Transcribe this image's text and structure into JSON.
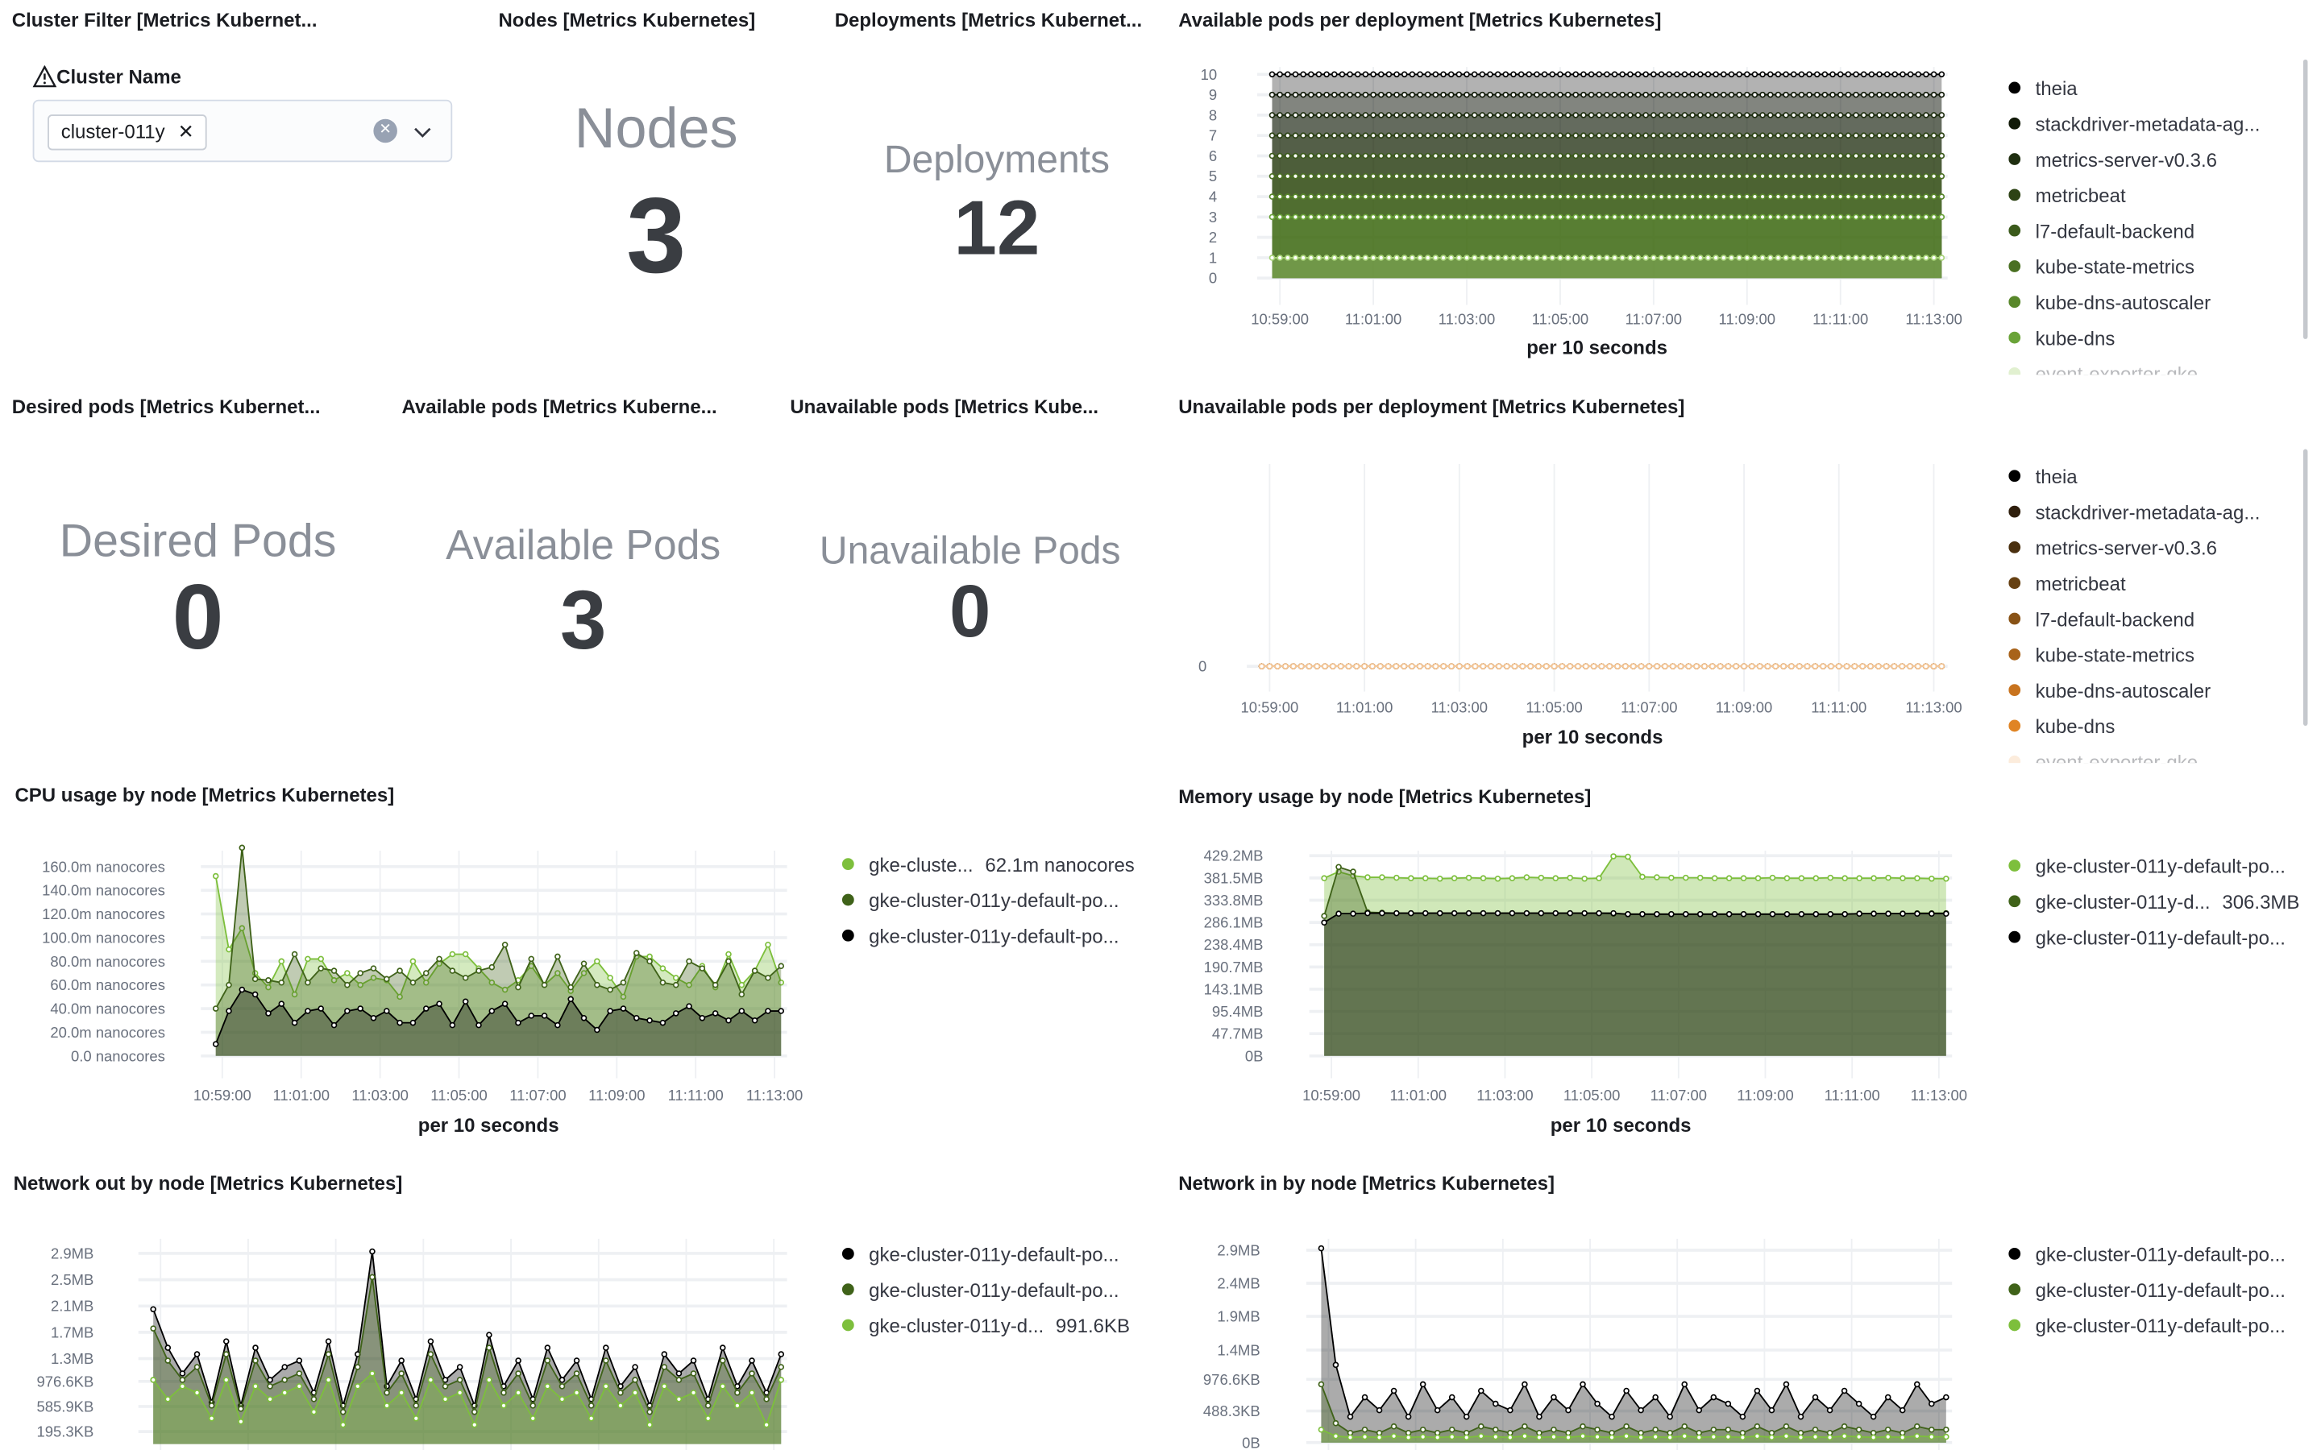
{
  "panels": {
    "cluster_filter": {
      "title": "Cluster Filter [Metrics Kubernet...",
      "label": "Cluster Name",
      "selected": "cluster-011y",
      "icons": [
        "warning-icon",
        "clear-icon",
        "chevron-down-icon",
        "remove-chip-icon"
      ]
    },
    "nodes": {
      "title": "Nodes [Metrics Kubernetes]",
      "label": "Nodes",
      "value": "3"
    },
    "deployments": {
      "title": "Deployments [Metrics Kubernet...",
      "label": "Deployments",
      "value": "12"
    },
    "desired": {
      "title": "Desired pods [Metrics Kubernet...",
      "label": "Desired Pods",
      "value": "0"
    },
    "available": {
      "title": "Available pods [Metrics Kuberne...",
      "label": "Available Pods",
      "value": "3"
    },
    "unavailable": {
      "title": "Unavailable pods [Metrics Kube...",
      "label": "Unavailable Pods",
      "value": "0"
    }
  },
  "chart_data": [
    {
      "id": "avail_per_deploy",
      "type": "area",
      "title": "Available pods per deployment [Metrics Kubernetes]",
      "xlabel": "per 10 seconds",
      "x_start": "10:58:50",
      "x_end": "11:13:10",
      "x_ticks": [
        "10:59:00",
        "11:01:00",
        "11:03:00",
        "11:05:00",
        "11:07:00",
        "11:09:00",
        "11:11:00",
        "11:13:00"
      ],
      "y_ticks": [
        {
          "v": 0,
          "l": "0"
        },
        {
          "v": 1,
          "l": "1"
        },
        {
          "v": 2,
          "l": "2"
        },
        {
          "v": 3,
          "l": "3"
        },
        {
          "v": 4,
          "l": "4"
        },
        {
          "v": 5,
          "l": "5"
        },
        {
          "v": 6,
          "l": "6"
        },
        {
          "v": 7,
          "l": "7"
        },
        {
          "v": 8,
          "l": "8"
        },
        {
          "v": 9,
          "l": "9"
        },
        {
          "v": 10,
          "l": "10"
        }
      ],
      "ylim": [
        0,
        10
      ],
      "series": [
        {
          "name": "theia",
          "color": "#000000",
          "constant": 10
        },
        {
          "name": "stackdriver-metadata-ag...",
          "color": "#111a08",
          "constant": 9
        },
        {
          "name": "metrics-server-v0.3.6",
          "color": "#1f2e10",
          "constant": 8
        },
        {
          "name": "metricbeat",
          "color": "#2d4315",
          "constant": 7
        },
        {
          "name": "l7-default-backend",
          "color": "#3b5a1b",
          "constant": 6
        },
        {
          "name": "kube-state-metrics",
          "color": "#4a7022",
          "constant": 5
        },
        {
          "name": "kube-dns-autoscaler",
          "color": "#58872a",
          "constant": 4
        },
        {
          "name": "kube-dns",
          "color": "#6aa338",
          "constant": 3
        },
        {
          "name": "event-exporter-gke",
          "color": "#a9d47a",
          "constant": 1
        }
      ]
    },
    {
      "id": "unavail_per_deploy",
      "type": "area",
      "title": "Unavailable pods per deployment [Metrics Kubernetes]",
      "xlabel": "per 10 seconds",
      "x_start": "10:58:50",
      "x_end": "11:13:10",
      "x_ticks": [
        "10:59:00",
        "11:01:00",
        "11:03:00",
        "11:05:00",
        "11:07:00",
        "11:09:00",
        "11:11:00",
        "11:13:00"
      ],
      "y_ticks": [
        {
          "v": 0,
          "l": "0"
        }
      ],
      "ylim": [
        0,
        1
      ],
      "series": [
        {
          "name": "theia",
          "color": "#000000",
          "constant": 0
        },
        {
          "name": "stackdriver-metadata-ag...",
          "color": "#2e1e0c",
          "constant": 0
        },
        {
          "name": "metrics-server-v0.3.6",
          "color": "#4a300f",
          "constant": 0
        },
        {
          "name": "metricbeat",
          "color": "#664012",
          "constant": 0
        },
        {
          "name": "l7-default-backend",
          "color": "#885216",
          "constant": 0
        },
        {
          "name": "kube-state-metrics",
          "color": "#a8631a",
          "constant": 0
        },
        {
          "name": "kube-dns-autoscaler",
          "color": "#c8731e",
          "constant": 0
        },
        {
          "name": "kube-dns",
          "color": "#e08424",
          "constant": 0
        },
        {
          "name": "event-exporter-gke",
          "color": "#f5c89a",
          "constant": 0
        }
      ]
    },
    {
      "id": "cpu",
      "type": "area",
      "title": "CPU usage by node [Metrics Kubernetes]",
      "xlabel": "per 10 seconds",
      "x_start": "10:58:50",
      "x_end": "11:13:10",
      "x_ticks": [
        "10:59:00",
        "11:01:00",
        "11:03:00",
        "11:05:00",
        "11:07:00",
        "11:09:00",
        "11:11:00",
        "11:13:00"
      ],
      "y_ticks": [
        {
          "v": 0,
          "l": "0.0 nanocores"
        },
        {
          "v": 20,
          "l": "20.0m nanocores"
        },
        {
          "v": 40,
          "l": "40.0m nanocores"
        },
        {
          "v": 60,
          "l": "60.0m nanocores"
        },
        {
          "v": 80,
          "l": "80.0m nanocores"
        },
        {
          "v": 100,
          "l": "100.0m nanocores"
        },
        {
          "v": 120,
          "l": "120.0m nanocores"
        },
        {
          "v": 140,
          "l": "140.0m nanocores"
        },
        {
          "v": 160,
          "l": "160.0m nanocores"
        }
      ],
      "ylim": [
        0,
        176
      ],
      "series": [
        {
          "name": "gke-cluste...",
          "value_label": "62.1m nanocores",
          "color": "#7dbf3c",
          "values": [
            152,
            90,
            108,
            70,
            58,
            80,
            52,
            82,
            82,
            64,
            70,
            60,
            66,
            64,
            50,
            80,
            62,
            78,
            86,
            86,
            74,
            62,
            56,
            64,
            76,
            60,
            70,
            55,
            70,
            80,
            66,
            50,
            84,
            84,
            74,
            66,
            60,
            76,
            58,
            86,
            60,
            72,
            94,
            62
          ]
        },
        {
          "name": "gke-cluster-011y-default-po...",
          "color": "#3f6219",
          "values": [
            40,
            60,
            176,
            65,
            64,
            62,
            86,
            62,
            74,
            72,
            60,
            70,
            74,
            65,
            72,
            62,
            70,
            82,
            72,
            66,
            72,
            75,
            94,
            58,
            82,
            60,
            84,
            58,
            78,
            60,
            56,
            62,
            87,
            80,
            62,
            60,
            80,
            74,
            60,
            80,
            52,
            72,
            66,
            76
          ]
        },
        {
          "name": "gke-cluster-011y-default-po...",
          "color": "#000000",
          "values": [
            10,
            38,
            56,
            52,
            36,
            44,
            28,
            38,
            40,
            26,
            38,
            40,
            32,
            38,
            28,
            28,
            40,
            44,
            26,
            46,
            26,
            38,
            44,
            28,
            34,
            34,
            26,
            48,
            32,
            22,
            38,
            40,
            32,
            30,
            28,
            36,
            42,
            32,
            36,
            30,
            38,
            30,
            38,
            38
          ]
        }
      ]
    },
    {
      "id": "memory",
      "type": "area",
      "title": "Memory usage by node [Metrics Kubernetes]",
      "xlabel": "per 10 seconds",
      "x_start": "10:58:50",
      "x_end": "11:13:10",
      "x_ticks": [
        "10:59:00",
        "11:01:00",
        "11:03:00",
        "11:05:00",
        "11:07:00",
        "11:09:00",
        "11:11:00",
        "11:13:00"
      ],
      "y_ticks": [
        {
          "v": 0,
          "l": "0B"
        },
        {
          "v": 47.7,
          "l": "47.7MB"
        },
        {
          "v": 95.4,
          "l": "95.4MB"
        },
        {
          "v": 143.1,
          "l": "143.1MB"
        },
        {
          "v": 190.7,
          "l": "190.7MB"
        },
        {
          "v": 238.4,
          "l": "238.4MB"
        },
        {
          "v": 286.1,
          "l": "286.1MB"
        },
        {
          "v": 333.8,
          "l": "333.8MB"
        },
        {
          "v": 381.5,
          "l": "381.5MB"
        },
        {
          "v": 429.2,
          "l": "429.2MB"
        }
      ],
      "ylim": [
        0,
        440
      ],
      "series": [
        {
          "name": "gke-cluster-011y-default-po...",
          "color": "#7dbf3c",
          "values": [
            381,
            395,
            386,
            383,
            383,
            382,
            381,
            381,
            380,
            381,
            382,
            381,
            380,
            381,
            383,
            382,
            381,
            382,
            380,
            381,
            428,
            427,
            384,
            383,
            382,
            382,
            382,
            381,
            381,
            381,
            381,
            382,
            381,
            381,
            381,
            382,
            381,
            381,
            381,
            382,
            381,
            381,
            380,
            380
          ]
        },
        {
          "name": "gke-cluster-011y-d...",
          "value_label": "306.3MB",
          "color": "#3f6219",
          "values": [
            300,
            405,
            395,
            308,
            307,
            306,
            306,
            306,
            306,
            306,
            306,
            306,
            306,
            306,
            306,
            306,
            306,
            306,
            306,
            306,
            305,
            304,
            304,
            304,
            304,
            304,
            304,
            304,
            304,
            304,
            304,
            304,
            304,
            304,
            304,
            304,
            304,
            305,
            305,
            305,
            305,
            306,
            306,
            306
          ]
        },
        {
          "name": "gke-cluster-011y-default-po...",
          "color": "#000000",
          "values": [
            286,
            305,
            305,
            306,
            306,
            306,
            306,
            306,
            306,
            306,
            306,
            306,
            306,
            306,
            306,
            306,
            306,
            306,
            306,
            306,
            306,
            304,
            304,
            304,
            304,
            304,
            304,
            304,
            304,
            304,
            304,
            304,
            304,
            304,
            304,
            304,
            304,
            305,
            305,
            305,
            305,
            305,
            305,
            305
          ]
        }
      ]
    },
    {
      "id": "net_out",
      "type": "area",
      "title": "Network out by node [Metrics Kubernetes]",
      "xlabel": "",
      "x_start": "10:58:50",
      "x_end": "11:13:10",
      "x_ticks": [],
      "y_ticks": [
        {
          "v": 195.3,
          "l": "195.3KB"
        },
        {
          "v": 585.9,
          "l": "585.9KB"
        },
        {
          "v": 976.6,
          "l": "976.6KB"
        },
        {
          "v": 1331,
          "l": "1.3MB"
        },
        {
          "v": 1741,
          "l": "1.7MB"
        },
        {
          "v": 2150,
          "l": "2.1MB"
        },
        {
          "v": 2560,
          "l": "2.5MB"
        },
        {
          "v": 2970,
          "l": "2.9MB"
        }
      ],
      "ylim": [
        0,
        3150
      ],
      "series": [
        {
          "name": "gke-cluster-011y-default-po...",
          "color": "#000000",
          "values": [
            2100,
            1500,
            1100,
            1400,
            650,
            1600,
            600,
            1500,
            1000,
            1200,
            1300,
            800,
            1600,
            600,
            1400,
            3000,
            900,
            1300,
            700,
            1600,
            1000,
            1200,
            600,
            1700,
            900,
            1300,
            700,
            1500,
            1000,
            1300,
            700,
            1500,
            900,
            1200,
            600,
            1400,
            1100,
            1300,
            700,
            1500,
            900,
            1300,
            800,
            1400
          ]
        },
        {
          "name": "gke-cluster-011y-default-po...",
          "color": "#3f6219",
          "values": [
            1800,
            1300,
            1000,
            1200,
            600,
            1400,
            550,
            1300,
            900,
            1000,
            1100,
            700,
            1400,
            500,
            1200,
            2600,
            800,
            1100,
            600,
            1400,
            900,
            1000,
            500,
            1500,
            800,
            1100,
            600,
            1300,
            900,
            1100,
            600,
            1300,
            800,
            1000,
            500,
            1200,
            1000,
            1100,
            600,
            1300,
            800,
            1100,
            700,
            1200
          ]
        },
        {
          "name": "gke-cluster-011y-d...",
          "value_label": "991.6KB",
          "color": "#7dbf3c",
          "values": [
            1000,
            700,
            900,
            800,
            400,
            1000,
            350,
            900,
            700,
            800,
            900,
            500,
            1000,
            300,
            900,
            1100,
            600,
            800,
            400,
            1000,
            700,
            800,
            300,
            1000,
            600,
            800,
            400,
            900,
            700,
            800,
            400,
            900,
            600,
            800,
            300,
            900,
            700,
            800,
            400,
            900,
            600,
            800,
            300,
            1000
          ]
        }
      ]
    },
    {
      "id": "net_in",
      "type": "area",
      "title": "Network in by node [Metrics Kubernetes]",
      "xlabel": "",
      "x_start": "10:58:50",
      "x_end": "11:13:10",
      "x_ticks": [],
      "y_ticks": [
        {
          "v": 0,
          "l": "0B"
        },
        {
          "v": 488.3,
          "l": "488.3KB"
        },
        {
          "v": 976.6,
          "l": "976.6KB"
        },
        {
          "v": 1430,
          "l": "1.4MB"
        },
        {
          "v": 1950,
          "l": "1.9MB"
        },
        {
          "v": 2460,
          "l": "2.4MB"
        },
        {
          "v": 2970,
          "l": "2.9MB"
        }
      ],
      "ylim": [
        0,
        3100
      ],
      "series": [
        {
          "name": "gke-cluster-011y-default-po...",
          "color": "#000000",
          "values": [
            3000,
            1200,
            400,
            700,
            500,
            800,
            400,
            900,
            500,
            700,
            400,
            800,
            600,
            500,
            900,
            400,
            700,
            500,
            900,
            600,
            400,
            800,
            500,
            700,
            400,
            900,
            500,
            700,
            600,
            400,
            800,
            500,
            900,
            400,
            700,
            500,
            800,
            600,
            400,
            700,
            500,
            900,
            600,
            700
          ]
        },
        {
          "name": "gke-cluster-011y-default-po...",
          "color": "#3f6219",
          "values": [
            900,
            300,
            150,
            200,
            150,
            250,
            150,
            200,
            150,
            200,
            150,
            250,
            200,
            150,
            250,
            150,
            200,
            150,
            250,
            200,
            150,
            250,
            150,
            200,
            150,
            250,
            150,
            200,
            200,
            150,
            250,
            150,
            250,
            150,
            200,
            150,
            250,
            200,
            150,
            200,
            150,
            250,
            200,
            200
          ]
        },
        {
          "name": "gke-cluster-011y-default-po...",
          "color": "#7dbf3c",
          "values": [
            200,
            100,
            80,
            90,
            80,
            100,
            80,
            90,
            80,
            90,
            80,
            100,
            90,
            80,
            100,
            80,
            90,
            80,
            100,
            90,
            80,
            100,
            80,
            90,
            80,
            100,
            80,
            90,
            90,
            80,
            100,
            80,
            100,
            80,
            90,
            80,
            100,
            90,
            80,
            90,
            80,
            100,
            90,
            90
          ]
        }
      ]
    }
  ]
}
